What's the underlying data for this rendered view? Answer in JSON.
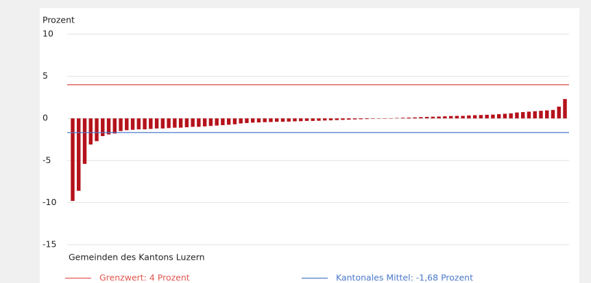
{
  "chart_data": {
    "type": "bar",
    "y_axis_label": "Prozent",
    "x_axis_label": "Gemeinden des Kantons Luzern",
    "ylim": [
      -15,
      10
    ],
    "yticks": [
      -15,
      -10,
      -5,
      0,
      5,
      10
    ],
    "grid": true,
    "color": "#b5121b",
    "values": [
      -9.8,
      -8.6,
      -5.4,
      -3.1,
      -2.7,
      -2.1,
      -1.9,
      -1.8,
      -1.5,
      -1.4,
      -1.35,
      -1.3,
      -1.3,
      -1.25,
      -1.2,
      -1.2,
      -1.15,
      -1.1,
      -1.1,
      -1.05,
      -1.0,
      -1.0,
      -0.95,
      -0.9,
      -0.85,
      -0.8,
      -0.75,
      -0.7,
      -0.6,
      -0.55,
      -0.5,
      -0.48,
      -0.45,
      -0.43,
      -0.4,
      -0.4,
      -0.38,
      -0.35,
      -0.33,
      -0.3,
      -0.3,
      -0.28,
      -0.25,
      -0.23,
      -0.2,
      -0.18,
      -0.15,
      -0.12,
      -0.1,
      -0.08,
      -0.05,
      -0.03,
      -0.02,
      0.02,
      0.05,
      0.08,
      0.1,
      0.12,
      0.15,
      0.18,
      0.2,
      0.22,
      0.25,
      0.28,
      0.3,
      0.3,
      0.35,
      0.38,
      0.4,
      0.43,
      0.45,
      0.5,
      0.55,
      0.6,
      0.7,
      0.75,
      0.8,
      0.85,
      0.9,
      0.95,
      1.0,
      1.4,
      2.3
    ],
    "reference_lines": [
      {
        "name": "Grenzwert: 4 Prozent",
        "value": 4,
        "color": "#e0554d"
      },
      {
        "name": "Kantonales Mittel: -1,68 Prozent",
        "value": -1.68,
        "color": "#4a78c8"
      }
    ]
  }
}
